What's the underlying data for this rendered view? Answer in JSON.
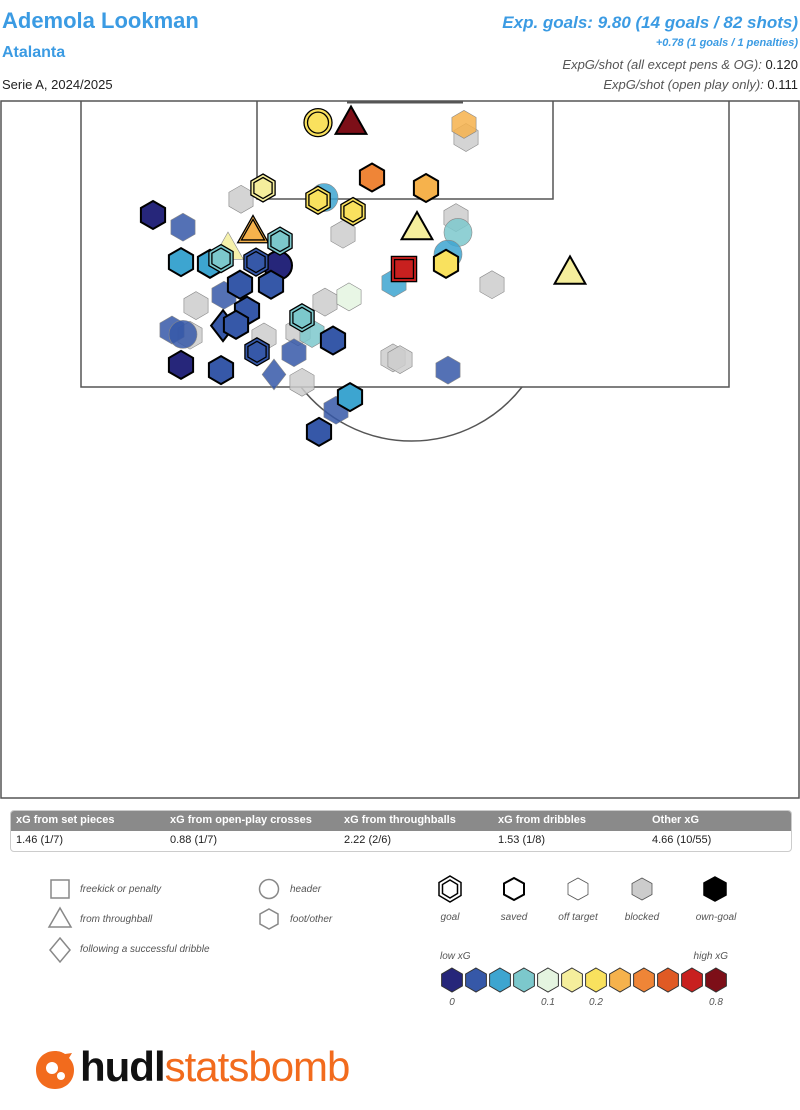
{
  "header": {
    "player": "Ademola Lookman",
    "team": "Atalanta",
    "season": "Serie A, 2024/2025",
    "xg_total": "Exp. goals: 9.80 (14 goals / 82 shots)",
    "xg_penalties": "+0.78 (1 goals / 1 penalties)",
    "xg_per_shot_label": "ExpG/shot (all except pens & OG):",
    "xg_per_shot_value": "0.120",
    "xg_open_label": "ExpG/shot (open play only):",
    "xg_open_value": "0.111"
  },
  "summary": {
    "columns": [
      {
        "label": "xG from set pieces",
        "value": "1.46 (1/7)"
      },
      {
        "label": "xG from open-play crosses",
        "value": "0.88 (1/7)"
      },
      {
        "label": "xG from throughballs",
        "value": "2.22 (2/6)"
      },
      {
        "label": "xG from dribbles",
        "value": "1.53 (1/8)"
      },
      {
        "label": "Other xG",
        "value": "4.66 (10/55)"
      }
    ]
  },
  "legend": {
    "shapes": {
      "freekick": "freekick or penalty",
      "throughball": "from throughball",
      "dribble": "following a successful dribble",
      "header": "header",
      "foot": "foot/other"
    },
    "outcomes": {
      "goal": "goal",
      "saved": "saved",
      "off_target": "off target",
      "blocked": "blocked",
      "own_goal": "own-goal"
    },
    "scale": {
      "low": "low xG",
      "high": "high xG",
      "t0": "0",
      "t1": "0.1",
      "t2": "0.2",
      "t3": "0.8"
    },
    "colors": [
      "#26267a",
      "#3658a8",
      "#3da5d0",
      "#7cc8cc",
      "#e4f4e0",
      "#f5ee9c",
      "#f9e15e",
      "#f6b24c",
      "#ef8537",
      "#e05a24",
      "#c8201f",
      "#7d0f18"
    ],
    "blocked_color": "#cccccc"
  },
  "brand": {
    "part1": "hudl",
    "part2": "statsbomb",
    "accent": "#f26b1d"
  },
  "chart_data": {
    "type": "scatter",
    "title": "Ademola Lookman",
    "x_range": [
      0,
      80
    ],
    "y_range": [
      40,
      120
    ],
    "shots": [
      {
        "x": 31.8,
        "y": 117.4,
        "xg": 0.2,
        "shape": "circle",
        "outcome": "goal"
      },
      {
        "x": 35.1,
        "y": 117.4,
        "xg": 0.9,
        "shape": "triangle",
        "outcome": "saved"
      },
      {
        "x": 46.4,
        "y": 117.2,
        "xg": 0.3,
        "shape": "hex",
        "outcome": "off"
      },
      {
        "x": 46.6,
        "y": 115.7,
        "xg": 0.0,
        "shape": "hex",
        "outcome": "blocked"
      },
      {
        "x": 37.2,
        "y": 111.1,
        "xg": 0.55,
        "shape": "hex",
        "outcome": "saved"
      },
      {
        "x": 42.6,
        "y": 109.9,
        "xg": 0.35,
        "shape": "hex",
        "outcome": "saved"
      },
      {
        "x": 26.3,
        "y": 109.9,
        "xg": 0.15,
        "shape": "hex",
        "outcome": "goal"
      },
      {
        "x": 32.4,
        "y": 108.8,
        "xg": 0.07,
        "shape": "circle",
        "outcome": "off"
      },
      {
        "x": 31.8,
        "y": 108.5,
        "xg": 0.25,
        "shape": "hex",
        "outcome": "goal"
      },
      {
        "x": 24.1,
        "y": 108.6,
        "xg": 0.0,
        "shape": "hex",
        "outcome": "blocked"
      },
      {
        "x": 35.3,
        "y": 107.2,
        "xg": 0.2,
        "shape": "hex",
        "outcome": "goal"
      },
      {
        "x": 15.3,
        "y": 106.8,
        "xg": 0.01,
        "shape": "hex",
        "outcome": "saved"
      },
      {
        "x": 18.3,
        "y": 105.4,
        "xg": 0.03,
        "shape": "hex",
        "outcome": "off"
      },
      {
        "x": 45.6,
        "y": 106.5,
        "xg": 0.0,
        "shape": "hex",
        "outcome": "blocked"
      },
      {
        "x": 25.3,
        "y": 104.9,
        "xg": 0.3,
        "shape": "triangle",
        "outcome": "goal"
      },
      {
        "x": 41.7,
        "y": 105.3,
        "xg": 0.17,
        "shape": "triangle",
        "outcome": "saved"
      },
      {
        "x": 45.8,
        "y": 104.8,
        "xg": 0.08,
        "shape": "circle",
        "outcome": "off"
      },
      {
        "x": 34.3,
        "y": 104.6,
        "xg": 0.0,
        "shape": "hex",
        "outcome": "blocked"
      },
      {
        "x": 28.0,
        "y": 103.8,
        "xg": 0.08,
        "shape": "hex",
        "outcome": "goal"
      },
      {
        "x": 22.8,
        "y": 103.0,
        "xg": 0.15,
        "shape": "triangle",
        "outcome": "off"
      },
      {
        "x": 18.1,
        "y": 101.4,
        "xg": 0.05,
        "shape": "hex",
        "outcome": "saved"
      },
      {
        "x": 21.0,
        "y": 101.2,
        "xg": 0.06,
        "shape": "hex",
        "outcome": "saved"
      },
      {
        "x": 22.1,
        "y": 101.8,
        "xg": 0.08,
        "shape": "hex",
        "outcome": "goal"
      },
      {
        "x": 25.6,
        "y": 101.4,
        "xg": 0.04,
        "shape": "hex",
        "outcome": "goal"
      },
      {
        "x": 27.8,
        "y": 101.0,
        "xg": 0.01,
        "shape": "circle",
        "outcome": "saved"
      },
      {
        "x": 44.6,
        "y": 101.2,
        "xg": 0.2,
        "shape": "hex",
        "outcome": "saved"
      },
      {
        "x": 57.0,
        "y": 100.2,
        "xg": 0.17,
        "shape": "triangle",
        "outcome": "saved"
      },
      {
        "x": 40.4,
        "y": 100.6,
        "xg": 0.85,
        "shape": "square",
        "outcome": "goal"
      },
      {
        "x": 44.8,
        "y": 102.3,
        "xg": 0.06,
        "shape": "circle",
        "outcome": "off"
      },
      {
        "x": 39.4,
        "y": 99.0,
        "xg": 0.06,
        "shape": "hex",
        "outcome": "off"
      },
      {
        "x": 49.2,
        "y": 98.8,
        "xg": 0.0,
        "shape": "hex",
        "outcome": "blocked"
      },
      {
        "x": 24.0,
        "y": 98.8,
        "xg": 0.03,
        "shape": "hex",
        "outcome": "saved"
      },
      {
        "x": 27.1,
        "y": 98.8,
        "xg": 0.04,
        "shape": "hex",
        "outcome": "saved"
      },
      {
        "x": 22.4,
        "y": 97.6,
        "xg": 0.04,
        "shape": "hex",
        "outcome": "off"
      },
      {
        "x": 34.9,
        "y": 97.4,
        "xg": 0.12,
        "shape": "hex",
        "outcome": "off"
      },
      {
        "x": 32.5,
        "y": 96.8,
        "xg": 0.0,
        "shape": "hex",
        "outcome": "blocked"
      },
      {
        "x": 19.6,
        "y": 96.4,
        "xg": 0.0,
        "shape": "hex",
        "outcome": "blocked"
      },
      {
        "x": 24.7,
        "y": 95.8,
        "xg": 0.04,
        "shape": "hex",
        "outcome": "saved"
      },
      {
        "x": 30.2,
        "y": 95.0,
        "xg": 0.08,
        "shape": "hex",
        "outcome": "goal"
      },
      {
        "x": 22.3,
        "y": 94.1,
        "xg": 0.02,
        "shape": "diamond",
        "outcome": "saved"
      },
      {
        "x": 23.6,
        "y": 94.2,
        "xg": 0.04,
        "shape": "hex",
        "outcome": "saved"
      },
      {
        "x": 17.2,
        "y": 93.6,
        "xg": 0.03,
        "shape": "hex",
        "outcome": "off"
      },
      {
        "x": 18.3,
        "y": 93.1,
        "xg": 0.04,
        "shape": "circle",
        "outcome": "off"
      },
      {
        "x": 26.4,
        "y": 92.8,
        "xg": 0.0,
        "shape": "hex",
        "outcome": "blocked"
      },
      {
        "x": 29.8,
        "y": 93.4,
        "xg": 0.0,
        "shape": "hex",
        "outcome": "blocked"
      },
      {
        "x": 31.2,
        "y": 93.2,
        "xg": 0.08,
        "shape": "hex",
        "outcome": "off"
      },
      {
        "x": 33.3,
        "y": 92.4,
        "xg": 0.04,
        "shape": "hex",
        "outcome": "saved"
      },
      {
        "x": 19.0,
        "y": 93.0,
        "xg": 0.0,
        "shape": "hex",
        "outcome": "blocked"
      },
      {
        "x": 25.7,
        "y": 91.1,
        "xg": 0.04,
        "shape": "hex",
        "outcome": "goal"
      },
      {
        "x": 29.4,
        "y": 91.0,
        "xg": 0.04,
        "shape": "hex",
        "outcome": "off"
      },
      {
        "x": 39.3,
        "y": 90.4,
        "xg": 0.0,
        "shape": "hex",
        "outcome": "blocked"
      },
      {
        "x": 40.0,
        "y": 90.2,
        "xg": 0.0,
        "shape": "hex",
        "outcome": "blocked"
      },
      {
        "x": 18.1,
        "y": 89.6,
        "xg": 0.01,
        "shape": "hex",
        "outcome": "saved"
      },
      {
        "x": 22.1,
        "y": 89.0,
        "xg": 0.04,
        "shape": "hex",
        "outcome": "saved"
      },
      {
        "x": 27.4,
        "y": 88.5,
        "xg": 0.04,
        "shape": "diamond",
        "outcome": "off"
      },
      {
        "x": 44.8,
        "y": 89.0,
        "xg": 0.04,
        "shape": "hex",
        "outcome": "off"
      },
      {
        "x": 30.2,
        "y": 87.6,
        "xg": 0.0,
        "shape": "hex",
        "outcome": "blocked"
      },
      {
        "x": 35.0,
        "y": 85.9,
        "xg": 0.06,
        "shape": "hex",
        "outcome": "saved"
      },
      {
        "x": 33.6,
        "y": 84.4,
        "xg": 0.04,
        "shape": "hex",
        "outcome": "off"
      },
      {
        "x": 31.9,
        "y": 81.9,
        "xg": 0.04,
        "shape": "hex",
        "outcome": "saved"
      }
    ]
  }
}
